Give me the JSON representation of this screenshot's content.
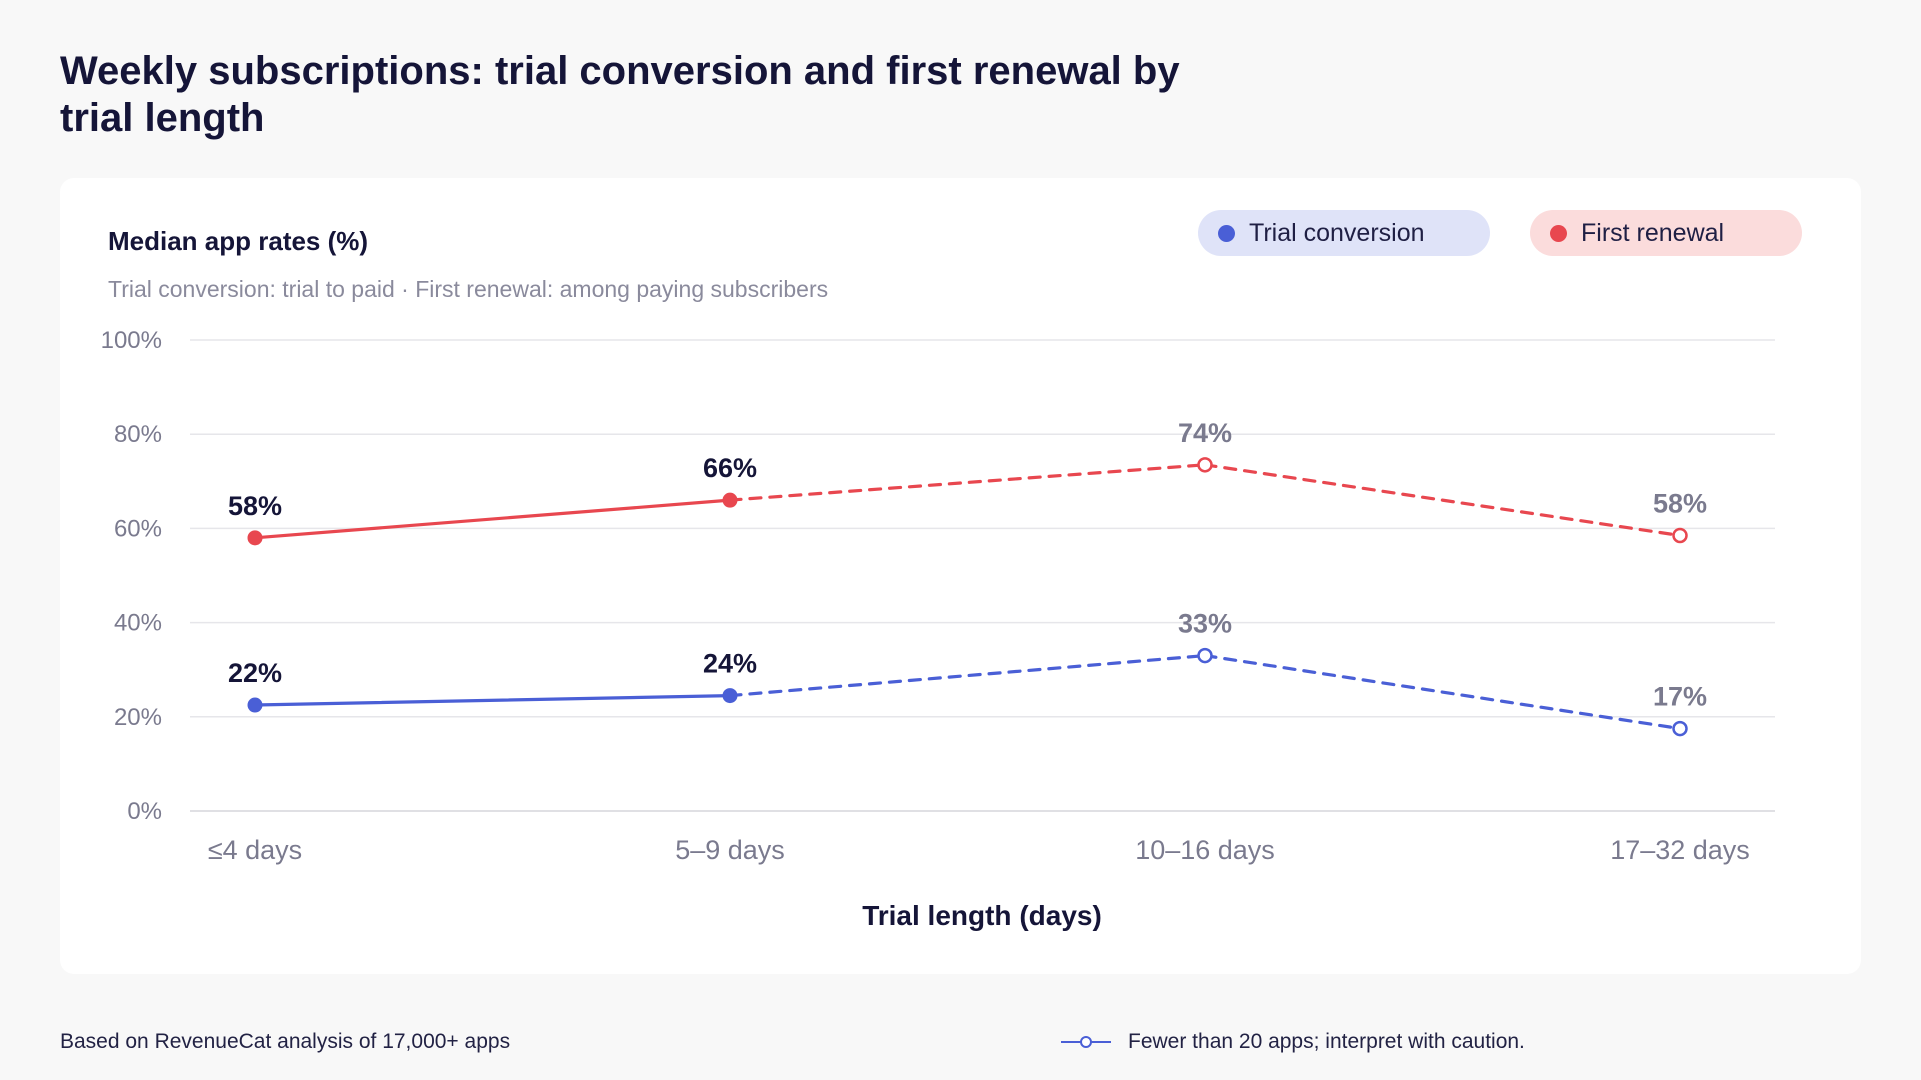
{
  "title": "Weekly subscriptions: trial conversion and first renewal by trial length",
  "footer": {
    "source": "Based on RevenueCat analysis of 17,000+ apps",
    "caution": "Fewer than 20 apps; interpret with caution."
  },
  "colors": {
    "trial": "#4a5fd6",
    "renewal": "#e8474f",
    "muted_label": "#7a7a8e",
    "dark_label": "#151538"
  },
  "chart_data": {
    "type": "line",
    "title": "Median app rates (%)",
    "subtitle": "Trial conversion: trial to paid · First renewal: among paying subscribers",
    "xlabel": "Trial length (days)",
    "ylabel": "",
    "ylim": [
      0,
      100
    ],
    "yticks": [
      "0%",
      "20%",
      "40%",
      "60%",
      "80%",
      "100%"
    ],
    "ytick_values": [
      0,
      20,
      40,
      60,
      80,
      100
    ],
    "categories": [
      "≤4 days",
      "5–9 days",
      "10–16 days",
      "17–32 days"
    ],
    "grid": true,
    "legend_placement": "top-right",
    "series": [
      {
        "name": "Trial conversion",
        "key": "trial",
        "values": [
          22.5,
          24.5,
          33,
          17.5
        ],
        "labels": [
          "22%",
          "24%",
          "33%",
          "17%"
        ],
        "low_sample": [
          false,
          false,
          true,
          true
        ]
      },
      {
        "name": "First renewal",
        "key": "renewal",
        "values": [
          58,
          66,
          73.5,
          58.5
        ],
        "labels": [
          "58%",
          "66%",
          "74%",
          "58%"
        ],
        "low_sample": [
          false,
          false,
          true,
          true
        ]
      }
    ]
  }
}
